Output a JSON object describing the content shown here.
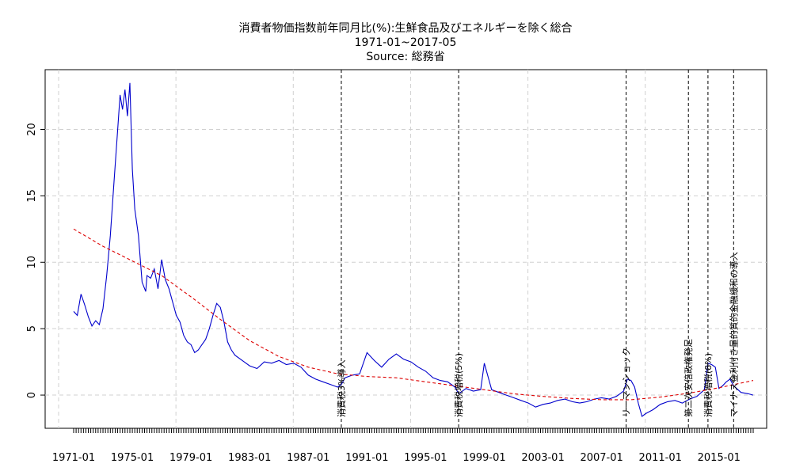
{
  "chart_data": {
    "type": "line",
    "title_lines": [
      "消費者物価指数前年同月比(%):生鮮食品及びエネルギーを除く総合",
      "1971-01~2017-05",
      "Source: 総務省"
    ],
    "xlabel": "",
    "ylabel": "",
    "x_range": [
      "1971-01",
      "2017-05"
    ],
    "ylim": [
      -2.5,
      24.5
    ],
    "x_ticks": [
      "1971-01",
      "1975-01",
      "1979-01",
      "1983-01",
      "1987-01",
      "1991-01",
      "1995-01",
      "1999-01",
      "2003-01",
      "2007-01",
      "2011-01",
      "2015-01"
    ],
    "y_ticks": [
      0,
      5,
      10,
      15,
      20
    ],
    "grid": true,
    "colors": {
      "series": "#0000cc",
      "trend": "#dd0000",
      "grid": "#d0d0d0",
      "event": "#000000"
    },
    "series": [
      {
        "line_style": "solid",
        "x": [
          "1971-01",
          "1971-04",
          "1971-07",
          "1971-10",
          "1972-01",
          "1972-04",
          "1972-07",
          "1972-10",
          "1973-01",
          "1973-04",
          "1973-07",
          "1973-10",
          "1974-01",
          "1974-03",
          "1974-05",
          "1974-07",
          "1974-09",
          "1974-11",
          "1975-01",
          "1975-03",
          "1975-06",
          "1975-09",
          "1975-12",
          "1976-01",
          "1976-04",
          "1976-07",
          "1976-10",
          "1977-01",
          "1977-04",
          "1977-07",
          "1977-10",
          "1978-01",
          "1978-04",
          "1978-07",
          "1978-10",
          "1979-01",
          "1979-04",
          "1979-07",
          "1979-10",
          "1980-01",
          "1980-04",
          "1980-07",
          "1980-10",
          "1981-01",
          "1981-04",
          "1981-07",
          "1981-10",
          "1982-01",
          "1982-07",
          "1983-01",
          "1983-07",
          "1984-01",
          "1984-07",
          "1985-01",
          "1985-07",
          "1986-01",
          "1986-07",
          "1987-01",
          "1987-07",
          "1988-01",
          "1988-07",
          "1989-01",
          "1989-04",
          "1989-07",
          "1990-01",
          "1990-07",
          "1991-01",
          "1991-07",
          "1992-01",
          "1992-07",
          "1993-01",
          "1993-07",
          "1994-01",
          "1994-07",
          "1995-01",
          "1995-07",
          "1996-01",
          "1996-07",
          "1997-01",
          "1997-04",
          "1997-10",
          "1998-04",
          "1998-10",
          "1999-01",
          "1999-07",
          "2000-01",
          "2000-07",
          "2001-01",
          "2001-07",
          "2002-01",
          "2002-07",
          "2003-01",
          "2003-07",
          "2004-01",
          "2004-07",
          "2005-01",
          "2005-07",
          "2006-01",
          "2006-07",
          "2007-01",
          "2007-07",
          "2008-01",
          "2008-04",
          "2008-07",
          "2008-10",
          "2009-01",
          "2009-04",
          "2009-07",
          "2009-10",
          "2010-01",
          "2010-07",
          "2011-01",
          "2011-07",
          "2012-01",
          "2012-07",
          "2013-01",
          "2013-07",
          "2014-01",
          "2014-04",
          "2014-07",
          "2014-10",
          "2015-01",
          "2015-04",
          "2015-07",
          "2015-10",
          "2016-01",
          "2016-07",
          "2017-01",
          "2017-05"
        ],
        "values": [
          6.3,
          6.0,
          7.6,
          6.8,
          5.9,
          5.2,
          5.6,
          5.3,
          6.5,
          9.0,
          12.0,
          16.0,
          20.0,
          22.6,
          21.5,
          23.0,
          21.0,
          23.5,
          17.0,
          14.0,
          12.0,
          8.5,
          7.8,
          9.0,
          8.8,
          9.5,
          8.0,
          10.2,
          8.7,
          8.0,
          7.0,
          6.0,
          5.5,
          4.5,
          4.0,
          3.8,
          3.2,
          3.4,
          3.8,
          4.2,
          5.0,
          6.0,
          6.9,
          6.6,
          5.5,
          4.0,
          3.4,
          3.0,
          2.6,
          2.2,
          2.0,
          2.5,
          2.4,
          2.6,
          2.3,
          2.4,
          2.1,
          1.5,
          1.2,
          1.0,
          0.8,
          0.6,
          0.8,
          1.3,
          1.5,
          1.6,
          3.2,
          2.6,
          2.1,
          2.7,
          3.1,
          2.7,
          2.5,
          2.1,
          1.8,
          1.3,
          1.1,
          1.0,
          0.6,
          0.1,
          0.5,
          0.3,
          0.4,
          2.4,
          0.4,
          0.2,
          0.0,
          -0.2,
          -0.4,
          -0.6,
          -0.9,
          -0.7,
          -0.6,
          -0.4,
          -0.3,
          -0.5,
          -0.6,
          -0.5,
          -0.3,
          -0.2,
          -0.3,
          -0.1,
          0.1,
          0.3,
          1.2,
          1.1,
          0.6,
          -0.6,
          -1.6,
          -1.4,
          -1.1,
          -0.7,
          -0.5,
          -0.4,
          -0.6,
          -0.3,
          -0.1,
          0.4,
          2.4,
          2.3,
          2.1,
          0.5,
          0.7,
          1.0,
          1.2,
          0.7,
          0.2,
          0.1,
          0.0
        ]
      },
      {
        "line_style": "dashed",
        "x": [
          "1971-01",
          "1973-01",
          "1975-01",
          "1977-01",
          "1979-01",
          "1981-01",
          "1983-01",
          "1985-01",
          "1987-01",
          "1989-01",
          "1991-01",
          "1993-01",
          "1995-01",
          "1997-01",
          "1999-01",
          "2001-01",
          "2003-01",
          "2005-01",
          "2007-01",
          "2009-01",
          "2011-01",
          "2013-01",
          "2015-01",
          "2017-05"
        ],
        "values": [
          12.5,
          11.2,
          10.1,
          9.0,
          7.4,
          5.7,
          4.1,
          2.9,
          2.1,
          1.6,
          1.4,
          1.3,
          1.0,
          0.7,
          0.4,
          0.1,
          -0.1,
          -0.25,
          -0.35,
          -0.35,
          -0.15,
          0.15,
          0.55,
          1.1
        ]
      }
    ],
    "events": [
      {
        "x": "1989-04",
        "label": "消費税3%導入"
      },
      {
        "x": "1997-04",
        "label": "消費税増税(5%)"
      },
      {
        "x": "2008-09",
        "label": "リーマンショック"
      },
      {
        "x": "2012-12",
        "label": "第二次安倍政権発足"
      },
      {
        "x": "2014-04",
        "label": "消費税増税(8%)"
      },
      {
        "x": "2016-01",
        "label": "マイナス金利付き量的質的金融緩和の導入"
      }
    ]
  }
}
